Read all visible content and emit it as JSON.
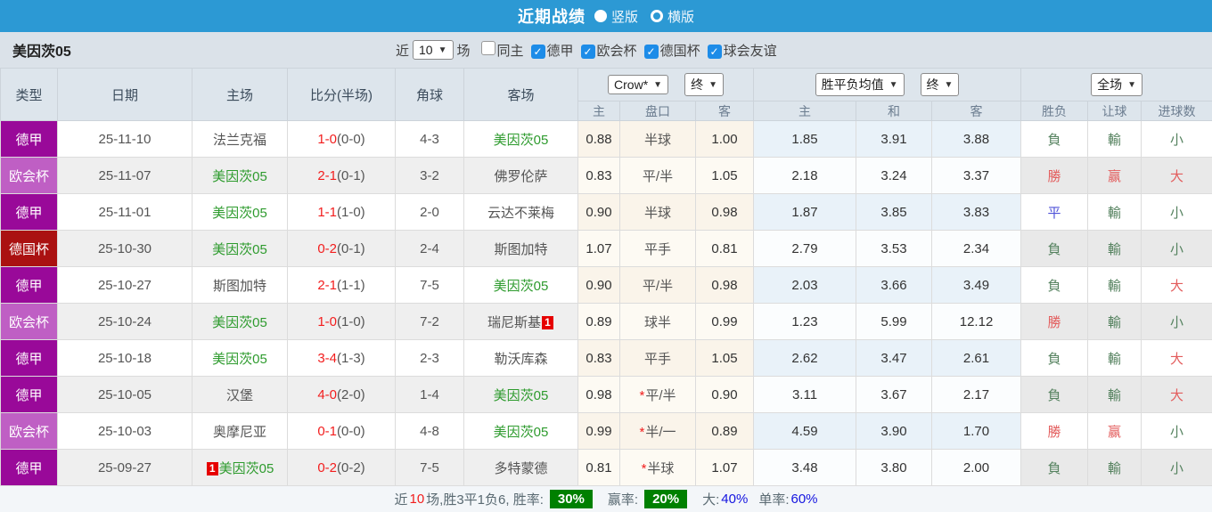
{
  "titlebar": {
    "title": "近期战绩",
    "radios": [
      {
        "label": "竖版",
        "selected": true
      },
      {
        "label": "横版",
        "selected": false
      }
    ]
  },
  "filterbar": {
    "team": "美因茨05",
    "near_label": "近",
    "near_value": "10",
    "games_label": "场",
    "checkboxes": [
      {
        "label": "同主",
        "checked": false
      },
      {
        "label": "德甲",
        "checked": true
      },
      {
        "label": "欧会杯",
        "checked": true
      },
      {
        "label": "德国杯",
        "checked": true
      },
      {
        "label": "球会友谊",
        "checked": true
      }
    ]
  },
  "table": {
    "left_headers": [
      "类型",
      "日期",
      "主场",
      "比分(半场)",
      "角球",
      "客场"
    ],
    "selects": {
      "asia_provider": "Crow*",
      "asia_time": "终",
      "europe_provider": "胜平负均值",
      "europe_time": "终",
      "scope": "全场"
    },
    "sub_headers": [
      "主",
      "盘口",
      "客",
      "主",
      "和",
      "客",
      "胜负",
      "让球",
      "进球数"
    ],
    "type_colors": {
      "德甲": "#990999",
      "欧会杯": "#bf5fc4",
      "德国杯": "#aa1111"
    },
    "rows": [
      {
        "type": "德甲",
        "date": "25-11-10",
        "home": {
          "name": "法兰克福",
          "green": false,
          "card": ""
        },
        "score": {
          "ft": "1-0",
          "ht": "(0-0)"
        },
        "corner": "4-3",
        "away": {
          "name": "美因茨05",
          "green": true,
          "card": ""
        },
        "asia": {
          "home": "0.88",
          "star": false,
          "line": "半球",
          "away": "1.00"
        },
        "europe": {
          "home": "1.85",
          "draw": "3.91",
          "away": "3.88"
        },
        "result": {
          "wdl": "負",
          "wdl_c": "softgreen",
          "let": "輸",
          "let_c": "softgreen",
          "goal": "小",
          "goal_c": "softgreen"
        }
      },
      {
        "type": "欧会杯",
        "date": "25-11-07",
        "home": {
          "name": "美因茨05",
          "green": true,
          "card": ""
        },
        "score": {
          "ft": "2-1",
          "ht": "(0-1)"
        },
        "corner": "3-2",
        "away": {
          "name": "佛罗伦萨",
          "green": false,
          "card": ""
        },
        "asia": {
          "home": "0.83",
          "star": false,
          "line": "平/半",
          "away": "1.05"
        },
        "europe": {
          "home": "2.18",
          "draw": "3.24",
          "away": "3.37"
        },
        "result": {
          "wdl": "勝",
          "wdl_c": "softred",
          "let": "赢",
          "let_c": "softred",
          "goal": "大",
          "goal_c": "softred"
        }
      },
      {
        "type": "德甲",
        "date": "25-11-01",
        "home": {
          "name": "美因茨05",
          "green": true,
          "card": ""
        },
        "score": {
          "ft": "1-1",
          "ht": "(1-0)"
        },
        "corner": "2-0",
        "away": {
          "name": "云达不莱梅",
          "green": false,
          "card": ""
        },
        "asia": {
          "home": "0.90",
          "star": false,
          "line": "半球",
          "away": "0.98"
        },
        "europe": {
          "home": "1.87",
          "draw": "3.85",
          "away": "3.83"
        },
        "result": {
          "wdl": "平",
          "wdl_c": "blue",
          "let": "輸",
          "let_c": "softgreen",
          "goal": "小",
          "goal_c": "softgreen"
        }
      },
      {
        "type": "德国杯",
        "date": "25-10-30",
        "home": {
          "name": "美因茨05",
          "green": true,
          "card": ""
        },
        "score": {
          "ft": "0-2",
          "ht": "(0-1)"
        },
        "corner": "2-4",
        "away": {
          "name": "斯图加特",
          "green": false,
          "card": ""
        },
        "asia": {
          "home": "1.07",
          "star": false,
          "line": "平手",
          "away": "0.81"
        },
        "europe": {
          "home": "2.79",
          "draw": "3.53",
          "away": "2.34"
        },
        "result": {
          "wdl": "負",
          "wdl_c": "softgreen",
          "let": "輸",
          "let_c": "softgreen",
          "goal": "小",
          "goal_c": "softgreen"
        }
      },
      {
        "type": "德甲",
        "date": "25-10-27",
        "home": {
          "name": "斯图加特",
          "green": false,
          "card": ""
        },
        "score": {
          "ft": "2-1",
          "ht": "(1-1)"
        },
        "corner": "7-5",
        "away": {
          "name": "美因茨05",
          "green": true,
          "card": ""
        },
        "asia": {
          "home": "0.90",
          "star": false,
          "line": "平/半",
          "away": "0.98"
        },
        "europe": {
          "home": "2.03",
          "draw": "3.66",
          "away": "3.49"
        },
        "result": {
          "wdl": "負",
          "wdl_c": "softgreen",
          "let": "輸",
          "let_c": "softgreen",
          "goal": "大",
          "goal_c": "softred"
        }
      },
      {
        "type": "欧会杯",
        "date": "25-10-24",
        "home": {
          "name": "美因茨05",
          "green": true,
          "card": ""
        },
        "score": {
          "ft": "1-0",
          "ht": "(1-0)"
        },
        "corner": "7-2",
        "away": {
          "name": "瑞尼斯基",
          "green": false,
          "card": "1"
        },
        "asia": {
          "home": "0.89",
          "star": false,
          "line": "球半",
          "away": "0.99"
        },
        "europe": {
          "home": "1.23",
          "draw": "5.99",
          "away": "12.12"
        },
        "result": {
          "wdl": "勝",
          "wdl_c": "softred",
          "let": "輸",
          "let_c": "softgreen",
          "goal": "小",
          "goal_c": "softgreen"
        }
      },
      {
        "type": "德甲",
        "date": "25-10-18",
        "home": {
          "name": "美因茨05",
          "green": true,
          "card": ""
        },
        "score": {
          "ft": "3-4",
          "ht": "(1-3)"
        },
        "corner": "2-3",
        "away": {
          "name": "勒沃库森",
          "green": false,
          "card": ""
        },
        "asia": {
          "home": "0.83",
          "star": false,
          "line": "平手",
          "away": "1.05"
        },
        "europe": {
          "home": "2.62",
          "draw": "3.47",
          "away": "2.61"
        },
        "result": {
          "wdl": "負",
          "wdl_c": "softgreen",
          "let": "輸",
          "let_c": "softgreen",
          "goal": "大",
          "goal_c": "softred"
        }
      },
      {
        "type": "德甲",
        "date": "25-10-05",
        "home": {
          "name": "汉堡",
          "green": false,
          "card": ""
        },
        "score": {
          "ft": "4-0",
          "ht": "(2-0)"
        },
        "corner": "1-4",
        "away": {
          "name": "美因茨05",
          "green": true,
          "card": ""
        },
        "asia": {
          "home": "0.98",
          "star": true,
          "line": "平/半",
          "away": "0.90"
        },
        "europe": {
          "home": "3.11",
          "draw": "3.67",
          "away": "2.17"
        },
        "result": {
          "wdl": "負",
          "wdl_c": "softgreen",
          "let": "輸",
          "let_c": "softgreen",
          "goal": "大",
          "goal_c": "softred"
        }
      },
      {
        "type": "欧会杯",
        "date": "25-10-03",
        "home": {
          "name": "奥摩尼亚",
          "green": false,
          "card": ""
        },
        "score": {
          "ft": "0-1",
          "ht": "(0-0)"
        },
        "corner": "4-8",
        "away": {
          "name": "美因茨05",
          "green": true,
          "card": ""
        },
        "asia": {
          "home": "0.99",
          "star": true,
          "line": "半/一",
          "away": "0.89"
        },
        "europe": {
          "home": "4.59",
          "draw": "3.90",
          "away": "1.70"
        },
        "result": {
          "wdl": "勝",
          "wdl_c": "softred",
          "let": "赢",
          "let_c": "softred",
          "goal": "小",
          "goal_c": "softgreen"
        }
      },
      {
        "type": "德甲",
        "date": "25-09-27",
        "home": {
          "name": "美因茨05",
          "green": true,
          "card": "1"
        },
        "score": {
          "ft": "0-2",
          "ht": "(0-2)"
        },
        "corner": "7-5",
        "away": {
          "name": "多特蒙德",
          "green": false,
          "card": ""
        },
        "asia": {
          "home": "0.81",
          "star": true,
          "line": "半球",
          "away": "1.07"
        },
        "europe": {
          "home": "3.48",
          "draw": "3.80",
          "away": "2.00"
        },
        "result": {
          "wdl": "負",
          "wdl_c": "softgreen",
          "let": "輸",
          "let_c": "softgreen",
          "goal": "小",
          "goal_c": "softgreen"
        }
      }
    ]
  },
  "footer": {
    "segments": [
      {
        "text": "近",
        "style": "gray"
      },
      {
        "text": "10",
        "style": "red"
      },
      {
        "text": "场,胜3平1负6, 胜率:",
        "style": "gray"
      },
      {
        "text": "30%",
        "style": "greenbox"
      },
      {
        "text": "赢率:",
        "style": "gray sp"
      },
      {
        "text": "20%",
        "style": "greenbox"
      },
      {
        "text": "大:",
        "style": "gray sp"
      },
      {
        "text": "40%",
        "style": "blue"
      },
      {
        "text": "单率:",
        "style": "gray sp"
      },
      {
        "text": "60%",
        "style": "blue"
      }
    ]
  },
  "colors": {
    "titlebar_bg": "#2c99d4",
    "checkbox_blue": "#1d8ce8",
    "green_team": "#2e9b2e",
    "score_red": "#f21d1d",
    "win_red": "#e35d5d",
    "lose_green": "#55825f",
    "draw_blue": "#4f52d8",
    "footer_green": "#008000"
  }
}
